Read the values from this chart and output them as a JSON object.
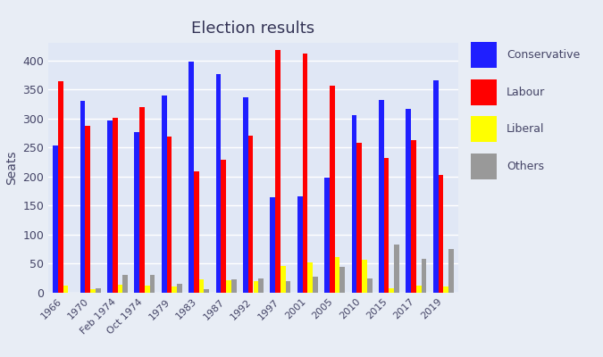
{
  "title": "Election results",
  "ylabel": "Seats",
  "years": [
    "1966",
    "1970",
    "Feb 1974",
    "Oct 1974",
    "1979",
    "1983",
    "1987",
    "1992",
    "1997",
    "2001",
    "2005",
    "2010",
    "2015",
    "2017",
    "2019"
  ],
  "conservative": [
    253,
    330,
    297,
    277,
    339,
    397,
    376,
    336,
    165,
    166,
    198,
    306,
    331,
    317,
    365
  ],
  "labour": [
    364,
    287,
    301,
    319,
    269,
    209,
    229,
    271,
    418,
    412,
    356,
    258,
    232,
    262,
    203
  ],
  "liberal": [
    12,
    6,
    14,
    13,
    11,
    23,
    22,
    20,
    46,
    52,
    62,
    57,
    8,
    12,
    11
  ],
  "others": [
    0,
    7,
    30,
    30,
    16,
    6,
    23,
    24,
    20,
    28,
    44,
    25,
    83,
    59,
    76
  ],
  "colors": {
    "conservative": "#1f1fff",
    "labour": "#ff0000",
    "liberal": "#ffff00",
    "others": "#999999"
  },
  "background_color": "#e8edf5",
  "plot_area_color": "#e0e7f5",
  "ylim": [
    0,
    430
  ],
  "legend_labels": [
    "Conservative",
    "Labour",
    "Liberal",
    "Others"
  ],
  "title_color": "#333355",
  "tick_color": "#444466"
}
